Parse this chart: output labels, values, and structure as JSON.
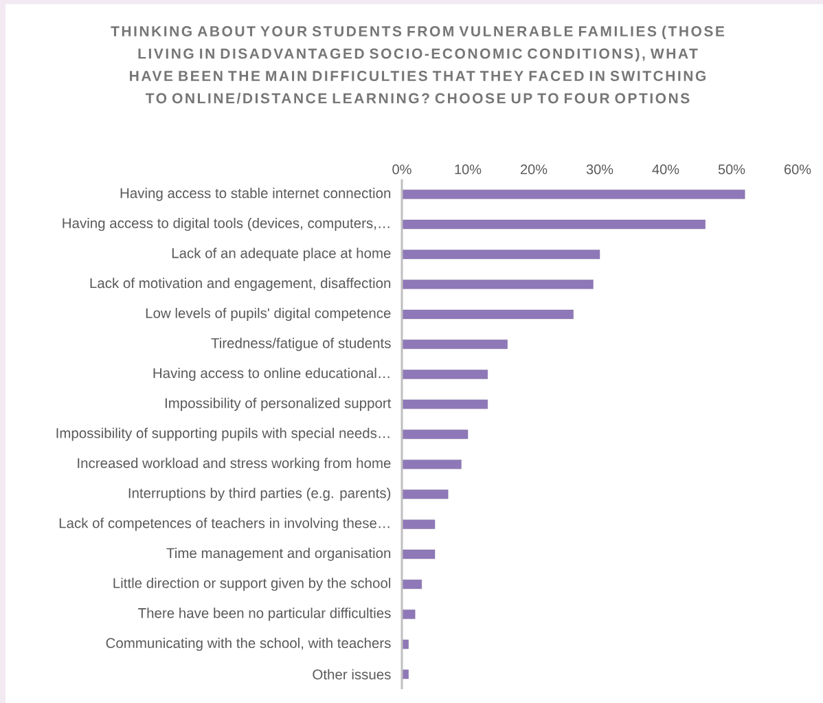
{
  "chart_data": {
    "type": "bar",
    "orientation": "horizontal",
    "title": "THINKING ABOUT YOUR STUDENTS FROM VULNERABLE FAMILIES (THOSE LIVING IN DISADVANTAGED SOCIO-ECONOMIC CONDITIONS), WHAT HAVE BEEN THE MAIN DIFFICULTIES THAT THEY FACED IN SWITCHING TO ONLINE/DISTANCE LEARNING? CHOOSE UP TO FOUR OPTIONS",
    "categories": [
      "Having access to stable internet connection",
      "Having access to digital tools (devices, computers,…",
      "Lack of an adequate place at home",
      "Lack of motivation and engagement, disaffection",
      "Low levels of pupils' digital competence",
      "Tiredness/fatigue of students",
      "Having access to online educational…",
      "Impossibility of personalized support",
      "Impossibility of supporting pupils with special needs…",
      "Increased workload and stress working from home",
      "Interruptions by third parties (e.g. parents)",
      "Lack of competences of teachers in involving these…",
      "Time management and organisation",
      "Little direction or support given by the school",
      "There have been no particular difficulties",
      "Communicating with the school, with teachers",
      "Other issues"
    ],
    "values": [
      52,
      46,
      30,
      29,
      26,
      16,
      13,
      13,
      10,
      9,
      7,
      5,
      5,
      3,
      2,
      1,
      1
    ],
    "color": "#8f78b8",
    "xlim": [
      0,
      60
    ],
    "xticks": [
      {
        "value": 0,
        "label": "0%"
      },
      {
        "value": 10,
        "label": "10%"
      },
      {
        "value": 20,
        "label": "20%"
      },
      {
        "value": 30,
        "label": "30%"
      },
      {
        "value": 40,
        "label": "40%"
      },
      {
        "value": 50,
        "label": "50%"
      },
      {
        "value": 60,
        "label": "60%"
      }
    ]
  }
}
